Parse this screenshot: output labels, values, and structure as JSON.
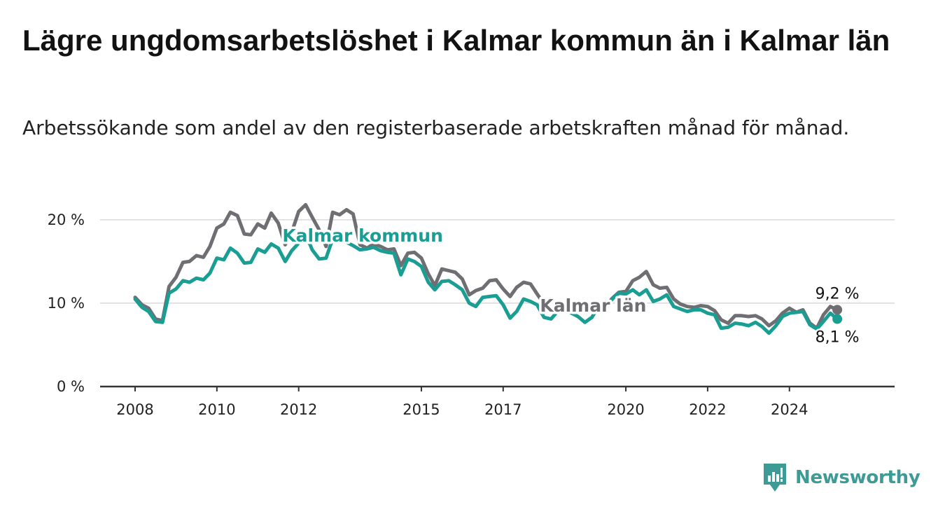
{
  "title": "Lägre ungdomsarbetslöshet i Kalmar kommun än i Kalmar län",
  "subtitle": "Arbetssökande som andel av den registerbaserade arbetskraften månad för månad.",
  "brand": {
    "name": "Newsworthy",
    "icon": "newsworthy-logo-icon",
    "color": "#3d9a94"
  },
  "chart_data": {
    "type": "line",
    "title": "Lägre ungdomsarbetslöshet i Kalmar kommun än i Kalmar län",
    "subtitle": "Arbetssökande som andel av den registerbaserade arbetskraften månad för månad.",
    "xlabel": "",
    "ylabel": "",
    "grid": true,
    "ylim": [
      0,
      22
    ],
    "xlim": [
      2008.0,
      2025.75
    ],
    "y_ticks": [
      0,
      10,
      20
    ],
    "y_tick_labels": [
      "0 %",
      "10 %",
      "20 %"
    ],
    "x_ticks": [
      2008,
      2010,
      2012,
      2015,
      2017,
      2020,
      2022,
      2024
    ],
    "x_tick_labels": [
      "2008",
      "2010",
      "2012",
      "2015",
      "2017",
      "2020",
      "2022",
      "2024"
    ],
    "end_labels": {
      "Kalmar län": "9,2 %",
      "Kalmar kommun": "8,1 %"
    },
    "series": [
      {
        "name": "Kalmar län",
        "color": "#6e6e73",
        "x": [
          2008.0,
          2008.17,
          2008.33,
          2008.5,
          2008.67,
          2008.83,
          2009.0,
          2009.17,
          2009.33,
          2009.5,
          2009.67,
          2009.83,
          2010.0,
          2010.17,
          2010.33,
          2010.5,
          2010.67,
          2010.83,
          2011.0,
          2011.17,
          2011.33,
          2011.5,
          2011.67,
          2011.83,
          2012.0,
          2012.17,
          2012.33,
          2012.5,
          2012.67,
          2012.83,
          2013.0,
          2013.17,
          2013.33,
          2013.5,
          2013.67,
          2013.83,
          2014.0,
          2014.17,
          2014.33,
          2014.5,
          2014.67,
          2014.83,
          2015.0,
          2015.17,
          2015.33,
          2015.5,
          2015.67,
          2015.83,
          2016.0,
          2016.17,
          2016.33,
          2016.5,
          2016.67,
          2016.83,
          2017.0,
          2017.17,
          2017.33,
          2017.5,
          2017.67,
          2017.83,
          2018.0,
          2018.17,
          2018.33,
          2018.5,
          2018.67,
          2018.83,
          2019.0,
          2019.17,
          2019.33,
          2019.5,
          2019.67,
          2019.83,
          2020.0,
          2020.17,
          2020.33,
          2020.5,
          2020.67,
          2020.83,
          2021.0,
          2021.17,
          2021.33,
          2021.5,
          2021.67,
          2021.83,
          2022.0,
          2022.17,
          2022.33,
          2022.5,
          2022.67,
          2022.83,
          2023.0,
          2023.17,
          2023.33,
          2023.5,
          2023.67,
          2023.83,
          2024.0,
          2024.17,
          2024.33,
          2024.5,
          2024.67,
          2024.83,
          2025.0,
          2025.17
        ],
        "values": [
          10.7,
          9.8,
          9.4,
          8.1,
          7.9,
          12.0,
          13.1,
          14.9,
          15.0,
          15.7,
          15.5,
          16.8,
          19.0,
          19.5,
          20.9,
          20.5,
          18.3,
          18.2,
          19.5,
          19.0,
          20.8,
          19.6,
          17.0,
          18.5,
          21.0,
          21.8,
          20.3,
          18.8,
          16.8,
          20.9,
          20.6,
          21.2,
          20.7,
          17.0,
          16.6,
          17.1,
          16.8,
          16.4,
          16.5,
          14.5,
          16.0,
          16.1,
          15.4,
          13.5,
          12.1,
          14.1,
          13.9,
          13.7,
          12.9,
          11.0,
          11.5,
          11.8,
          12.7,
          12.8,
          11.7,
          10.8,
          11.9,
          12.5,
          12.3,
          11.1,
          9.9,
          9.1,
          9.9,
          9.6,
          9.2,
          9.5,
          8.9,
          9.5,
          10.0,
          9.6,
          10.6,
          11.3,
          11.4,
          12.7,
          13.1,
          13.8,
          12.2,
          11.8,
          11.9,
          10.5,
          9.9,
          9.6,
          9.5,
          9.7,
          9.6,
          9.1,
          8.0,
          7.6,
          8.5,
          8.5,
          8.4,
          8.5,
          8.1,
          7.3,
          7.9,
          8.8,
          9.4,
          8.9,
          9.2,
          7.6,
          7.0,
          8.6,
          9.6,
          9.2
        ]
      },
      {
        "name": "Kalmar kommun",
        "color": "#1a9e94",
        "x": [
          2008.0,
          2008.17,
          2008.33,
          2008.5,
          2008.67,
          2008.83,
          2009.0,
          2009.17,
          2009.33,
          2009.5,
          2009.67,
          2009.83,
          2010.0,
          2010.17,
          2010.33,
          2010.5,
          2010.67,
          2010.83,
          2011.0,
          2011.17,
          2011.33,
          2011.5,
          2011.67,
          2011.83,
          2012.0,
          2012.17,
          2012.33,
          2012.5,
          2012.67,
          2012.83,
          2013.0,
          2013.17,
          2013.33,
          2013.5,
          2013.67,
          2013.83,
          2014.0,
          2014.17,
          2014.33,
          2014.5,
          2014.67,
          2014.83,
          2015.0,
          2015.17,
          2015.33,
          2015.5,
          2015.67,
          2015.83,
          2016.0,
          2016.17,
          2016.33,
          2016.5,
          2016.67,
          2016.83,
          2017.0,
          2017.17,
          2017.33,
          2017.5,
          2017.67,
          2017.83,
          2018.0,
          2018.17,
          2018.33,
          2018.5,
          2018.67,
          2018.83,
          2019.0,
          2019.17,
          2019.33,
          2019.5,
          2019.67,
          2019.83,
          2020.0,
          2020.17,
          2020.33,
          2020.5,
          2020.67,
          2020.83,
          2021.0,
          2021.17,
          2021.33,
          2021.5,
          2021.67,
          2021.83,
          2022.0,
          2022.17,
          2022.33,
          2022.5,
          2022.67,
          2022.83,
          2023.0,
          2023.17,
          2023.33,
          2023.5,
          2023.67,
          2023.83,
          2024.0,
          2024.17,
          2024.33,
          2024.5,
          2024.67,
          2024.83,
          2025.0,
          2025.17
        ],
        "values": [
          10.5,
          9.5,
          9.0,
          7.8,
          7.7,
          11.2,
          11.7,
          12.7,
          12.5,
          13.0,
          12.8,
          13.6,
          15.4,
          15.2,
          16.6,
          16.0,
          14.8,
          14.9,
          16.5,
          16.1,
          17.1,
          16.6,
          15.0,
          16.3,
          17.2,
          18.3,
          16.4,
          15.3,
          15.4,
          17.7,
          17.6,
          17.3,
          16.9,
          16.4,
          16.5,
          16.7,
          16.3,
          16.1,
          16.0,
          13.4,
          15.3,
          15.0,
          14.4,
          12.5,
          11.6,
          12.6,
          12.7,
          12.2,
          11.6,
          10.0,
          9.6,
          10.7,
          10.8,
          10.9,
          9.8,
          8.2,
          9.0,
          10.5,
          10.2,
          9.8,
          8.3,
          8.1,
          9.0,
          9.1,
          8.8,
          8.4,
          7.7,
          8.3,
          9.6,
          9.4,
          10.5,
          11.2,
          11.1,
          11.6,
          11.0,
          11.6,
          10.2,
          10.5,
          11.0,
          9.6,
          9.3,
          9.0,
          9.2,
          9.2,
          8.8,
          8.6,
          7.0,
          7.1,
          7.6,
          7.5,
          7.3,
          7.7,
          7.2,
          6.4,
          7.3,
          8.4,
          8.8,
          8.9,
          9.0,
          7.4,
          6.9,
          7.8,
          8.8,
          8.1
        ]
      }
    ]
  }
}
